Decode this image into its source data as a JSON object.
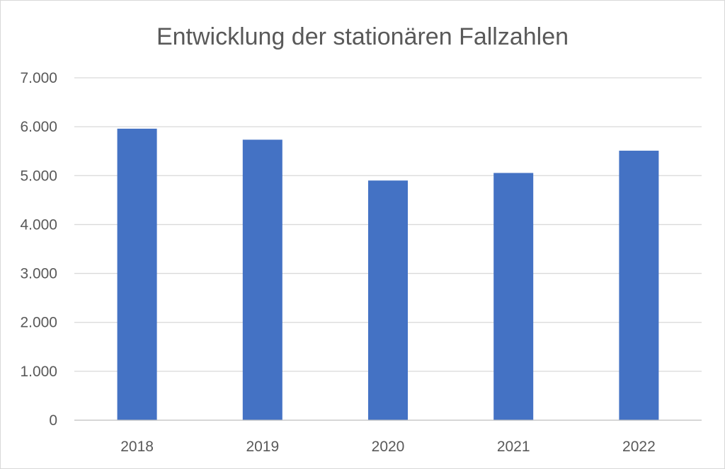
{
  "chart_data": {
    "type": "bar",
    "title": "Entwicklung der stationären Fallzahlen",
    "categories": [
      "2018",
      "2019",
      "2020",
      "2021",
      "2022"
    ],
    "series": [
      {
        "values": [
          5960,
          5735,
          4900,
          5055,
          5510
        ]
      }
    ],
    "ylim": [
      0,
      7000
    ],
    "yticks": [
      0,
      1000,
      2000,
      3000,
      4000,
      5000,
      6000,
      7000
    ],
    "ytick_labels": [
      "0",
      "1.000",
      "2.000",
      "3.000",
      "4.000",
      "5.000",
      "6.000",
      "7.000"
    ],
    "xlabel": "",
    "ylabel": "",
    "grid": true,
    "legend": "none",
    "bar_color": "#4472c4"
  }
}
